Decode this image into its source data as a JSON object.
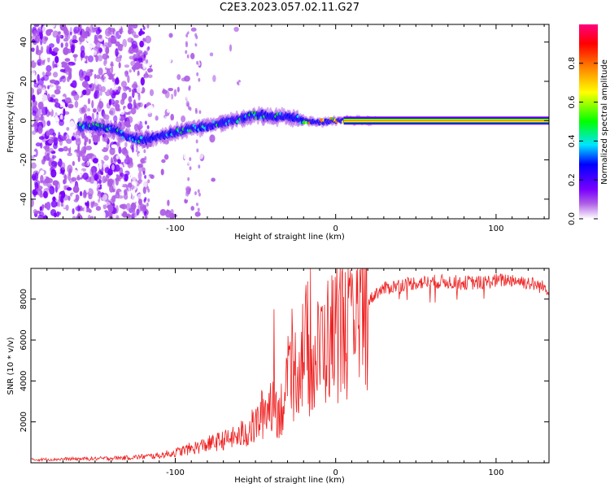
{
  "figure": {
    "title": "C2E3.2023.057.02.11.G27"
  },
  "chart_data": [
    {
      "type": "heatmap",
      "xlabel": "Height of straight line (km)",
      "ylabel": "Frequency (Hz)",
      "xlim": [
        -190,
        133
      ],
      "ylim": [
        -50,
        49
      ],
      "x_ticks": [
        -100,
        0,
        100
      ],
      "y_ticks": [
        -40,
        -20,
        0,
        20,
        40
      ],
      "grid": false,
      "trace": {
        "description_points": [
          [
            -150,
            -3
          ],
          [
            -140,
            -4
          ],
          [
            -130,
            -8
          ],
          [
            -120,
            -10
          ],
          [
            -110,
            -8
          ],
          [
            -100,
            -6
          ],
          [
            -90,
            -4
          ],
          [
            -80,
            -3
          ],
          [
            -70,
            -1
          ],
          [
            -60,
            1
          ],
          [
            -50,
            3
          ],
          [
            -40,
            2
          ],
          [
            -30,
            2
          ],
          [
            -20,
            0
          ],
          [
            -10,
            -1
          ],
          [
            0,
            0
          ],
          [
            10,
            0
          ],
          [
            20,
            0
          ],
          [
            133,
            0
          ]
        ]
      },
      "colorbar": {
        "label": "Normalized spectral amplitude",
        "range": [
          0,
          1
        ],
        "ticks": [
          "0.0",
          "0.2",
          "0.4",
          "0.6",
          "0.8"
        ],
        "colormap": [
          "#ffffff",
          "#ad5ce6",
          "#7a00ff",
          "#0000ff",
          "#00e5ff",
          "#00ff00",
          "#ffff00",
          "#ff8000",
          "#ff0000",
          "#ff007f"
        ]
      }
    },
    {
      "type": "line",
      "xlabel": "Height of straight line (km)",
      "ylabel": "SNR (10 * v/v)",
      "xlim": [
        -190,
        133
      ],
      "ylim": [
        0,
        9500
      ],
      "x_ticks": [
        -100,
        0,
        100
      ],
      "y_ticks": [
        2000,
        4000,
        6000,
        8000
      ],
      "grid": false,
      "series": [
        {
          "color": "#ee2222",
          "x": [
            -190,
            -170,
            -150,
            -130,
            -110,
            -100,
            -90,
            -80,
            -70,
            -60,
            -50,
            -45,
            -40,
            -35,
            -30,
            -25,
            -20,
            -15,
            -10,
            -5,
            0,
            5,
            10,
            15,
            20,
            25,
            30,
            40,
            50,
            60,
            70,
            80,
            90,
            100,
            110,
            120,
            133
          ],
          "y": [
            150,
            180,
            200,
            250,
            350,
            500,
            700,
            900,
            1100,
            1300,
            1800,
            2500,
            3000,
            2500,
            3500,
            4500,
            5500,
            4500,
            5500,
            6000,
            6300,
            6800,
            6000,
            7000,
            7800,
            8300,
            8500,
            8700,
            8800,
            8850,
            8850,
            8800,
            8800,
            8900,
            8950,
            8800,
            8500
          ]
        }
      ]
    }
  ]
}
